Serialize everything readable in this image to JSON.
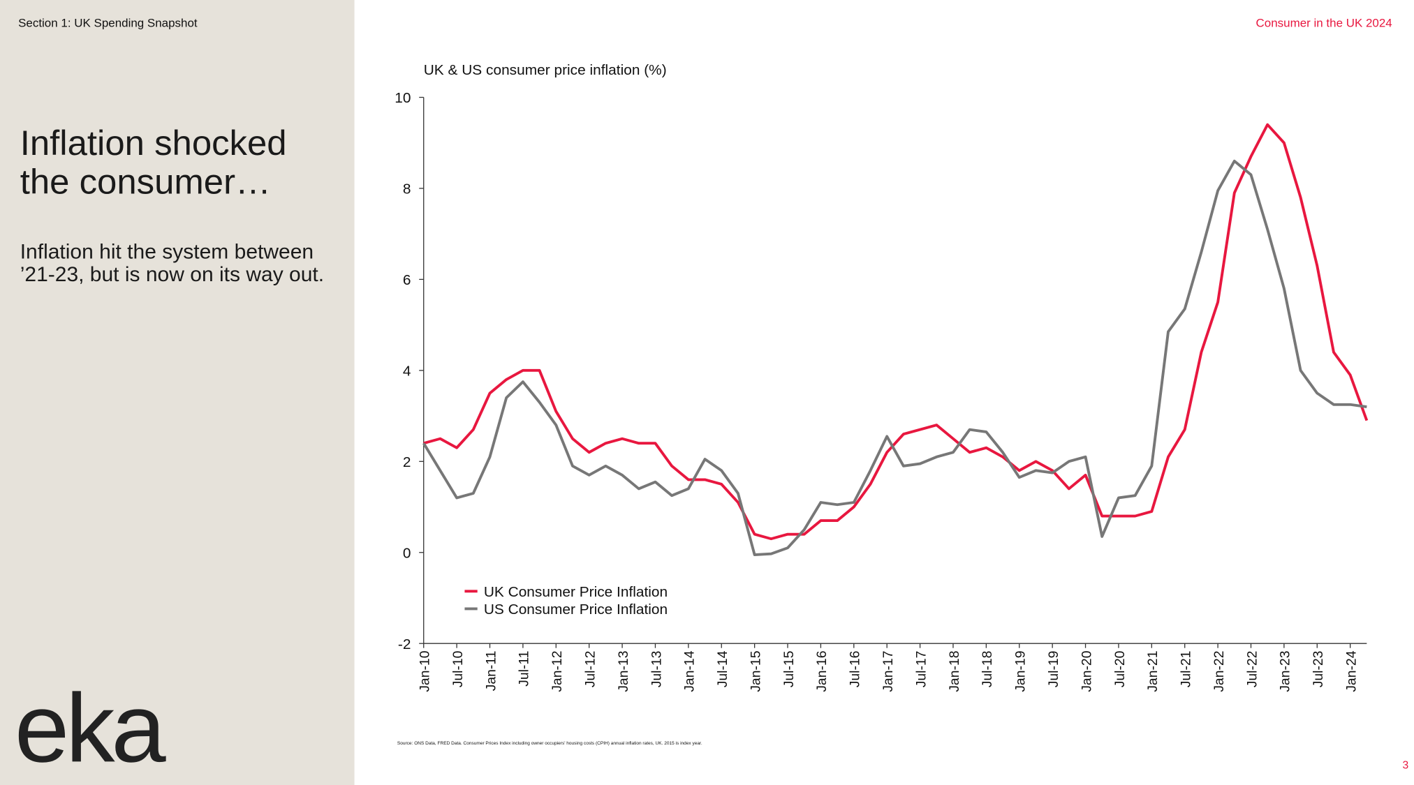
{
  "header": {
    "section": "Section 1: UK Spending Snapshot",
    "report": "Consumer in the UK 2024"
  },
  "sidebar": {
    "heading": "Inflation shocked the consumer…",
    "body": "Inflation hit the system between ’21-23, but is now on its way out.",
    "logo": "eka"
  },
  "footer": {
    "source": "Source: ONS Data, FRED Data. Consumer Prices Index including owner occupiers' housing costs (CPIH) annual inflation rates, UK. 2015 is index year.",
    "page": "3"
  },
  "chart_data": {
    "type": "line",
    "title": "UK & US consumer price inflation (%)",
    "categories": [
      "Jan-10",
      null,
      "Jul-10",
      null,
      "Jan-11",
      null,
      "Jul-11",
      null,
      "Jan-12",
      null,
      "Jul-12",
      null,
      "Jan-13",
      null,
      "Jul-13",
      null,
      "Jan-14",
      null,
      "Jul-14",
      null,
      "Jan-15",
      null,
      "Jul-15",
      null,
      "Jan-16",
      null,
      "Jul-16",
      null,
      "Jan-17",
      null,
      "Jul-17",
      null,
      "Jan-18",
      null,
      "Jul-18",
      null,
      "Jan-19",
      null,
      "Jul-19",
      null,
      "Jan-20",
      null,
      "Jul-20",
      null,
      "Jan-21",
      null,
      "Jul-21",
      null,
      "Jan-22",
      null,
      "Jul-22",
      null,
      "Jan-23",
      null,
      "Jul-23",
      null,
      "Jan-24",
      null
    ],
    "series": [
      {
        "name": "UK Consumer Price Inflation",
        "color": "#e8173f",
        "values": [
          2.4,
          2.5,
          2.3,
          2.7,
          3.5,
          3.8,
          4.0,
          4.0,
          3.1,
          2.5,
          2.2,
          2.4,
          2.5,
          2.4,
          2.4,
          1.9,
          1.6,
          1.6,
          1.5,
          1.1,
          0.4,
          0.3,
          0.4,
          0.4,
          0.7,
          0.7,
          1.0,
          1.5,
          2.2,
          2.6,
          2.7,
          2.8,
          2.5,
          2.2,
          2.3,
          2.1,
          1.8,
          2.0,
          1.8,
          1.4,
          1.7,
          0.8,
          0.8,
          0.8,
          0.9,
          2.1,
          2.7,
          4.4,
          5.5,
          7.9,
          8.7,
          9.4,
          9.0,
          7.8,
          6.3,
          4.4,
          3.9,
          2.9
        ]
      },
      {
        "name": "US Consumer Price Inflation",
        "color": "#777777",
        "values": [
          2.4,
          1.8,
          1.2,
          1.3,
          2.1,
          3.4,
          3.75,
          3.3,
          2.8,
          1.9,
          1.7,
          1.9,
          1.7,
          1.4,
          1.55,
          1.25,
          1.4,
          2.05,
          1.8,
          1.3,
          -0.05,
          -0.03,
          0.1,
          0.5,
          1.1,
          1.05,
          1.1,
          1.8,
          2.55,
          1.9,
          1.95,
          2.1,
          2.2,
          2.7,
          2.65,
          2.2,
          1.65,
          1.8,
          1.75,
          2.0,
          2.1,
          0.35,
          1.2,
          1.25,
          1.9,
          4.85,
          5.35,
          6.6,
          7.95,
          8.6,
          8.3,
          7.1,
          5.8,
          4.0,
          3.5,
          3.25,
          3.25,
          3.2
        ]
      }
    ],
    "ylim": [
      -2,
      10
    ],
    "yticks": [
      -2,
      0,
      2,
      4,
      6,
      8,
      10
    ],
    "grid": false,
    "legend": "lower left"
  }
}
